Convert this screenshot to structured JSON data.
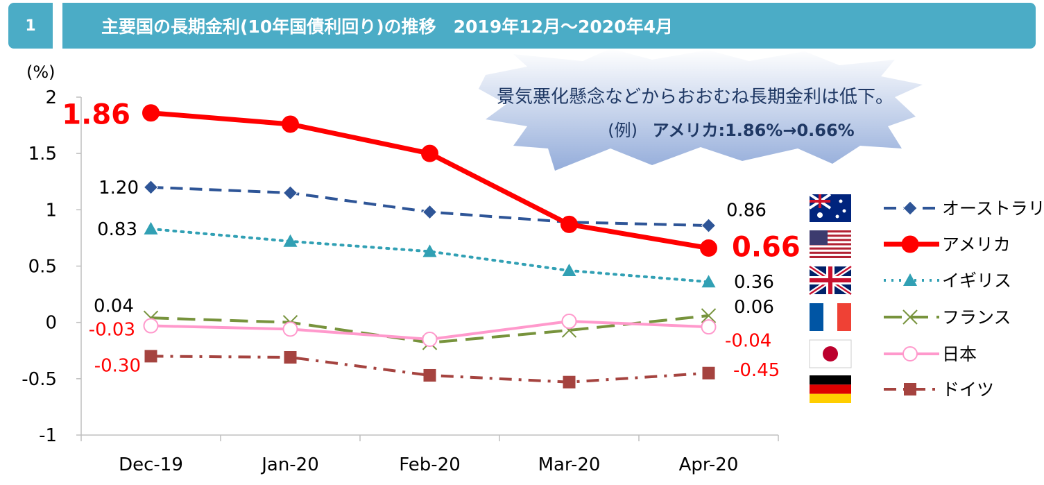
{
  "header": {
    "number": "1",
    "title": "主要国の長期金利(10年国債利回り)の推移　2019年12月〜2020年4月"
  },
  "callout": {
    "line1": "景気悪化懸念などからおおむね長期金利は低下。",
    "line2_prefix": "(例)",
    "line2_bold": "アメリカ:1.86%→0.66%"
  },
  "chart_data": {
    "type": "line",
    "ylabel": "(%)",
    "ylim": [
      -1,
      2
    ],
    "yticks": [
      "2",
      "1.5",
      "1",
      "0.5",
      "0",
      "-0.5",
      "-1"
    ],
    "categories": [
      "Dec-19",
      "Jan-20",
      "Feb-20",
      "Mar-20",
      "Apr-20"
    ],
    "grid": "vertical-axis-only",
    "legend_position": "right",
    "series": [
      {
        "name": "オーストラリア",
        "values": [
          1.2,
          1.15,
          0.98,
          0.89,
          0.86
        ],
        "color": "#2e5597",
        "style": "dashed",
        "marker": "diamond"
      },
      {
        "name": "アメリカ",
        "values": [
          1.86,
          1.76,
          1.5,
          0.87,
          0.66
        ],
        "color": "#ff0000",
        "style": "solid",
        "marker": "circle"
      },
      {
        "name": "イギリス",
        "values": [
          0.83,
          0.72,
          0.63,
          0.46,
          0.36
        ],
        "color": "#31a0b4",
        "style": "dotted",
        "marker": "triangle"
      },
      {
        "name": "フランス",
        "values": [
          0.04,
          0.0,
          -0.18,
          -0.07,
          0.06
        ],
        "color": "#77933c",
        "style": "longdash",
        "marker": "x"
      },
      {
        "name": "日本",
        "values": [
          -0.03,
          -0.06,
          -0.15,
          0.01,
          -0.04
        ],
        "color": "#ff99cc",
        "style": "solid",
        "marker": "open-circle"
      },
      {
        "name": "ドイツ",
        "values": [
          -0.3,
          -0.31,
          -0.47,
          -0.53,
          -0.45
        ],
        "color": "#a5433f",
        "style": "dashdot",
        "marker": "square"
      }
    ],
    "annotations": {
      "usa_start": "1.86",
      "usa_end": "0.66",
      "aus_start": "1.20",
      "aus_end": "0.86",
      "uk_start": "0.83",
      "uk_end": "0.36",
      "fr_start": "0.04",
      "fr_end": "0.06",
      "jp_start": "-0.03",
      "jp_end": "-0.04",
      "de_start": "-0.30",
      "de_end": "-0.45"
    }
  },
  "legend_flags": [
    "flag-australia",
    "flag-usa",
    "flag-uk",
    "flag-france",
    "flag-japan",
    "flag-germany"
  ]
}
